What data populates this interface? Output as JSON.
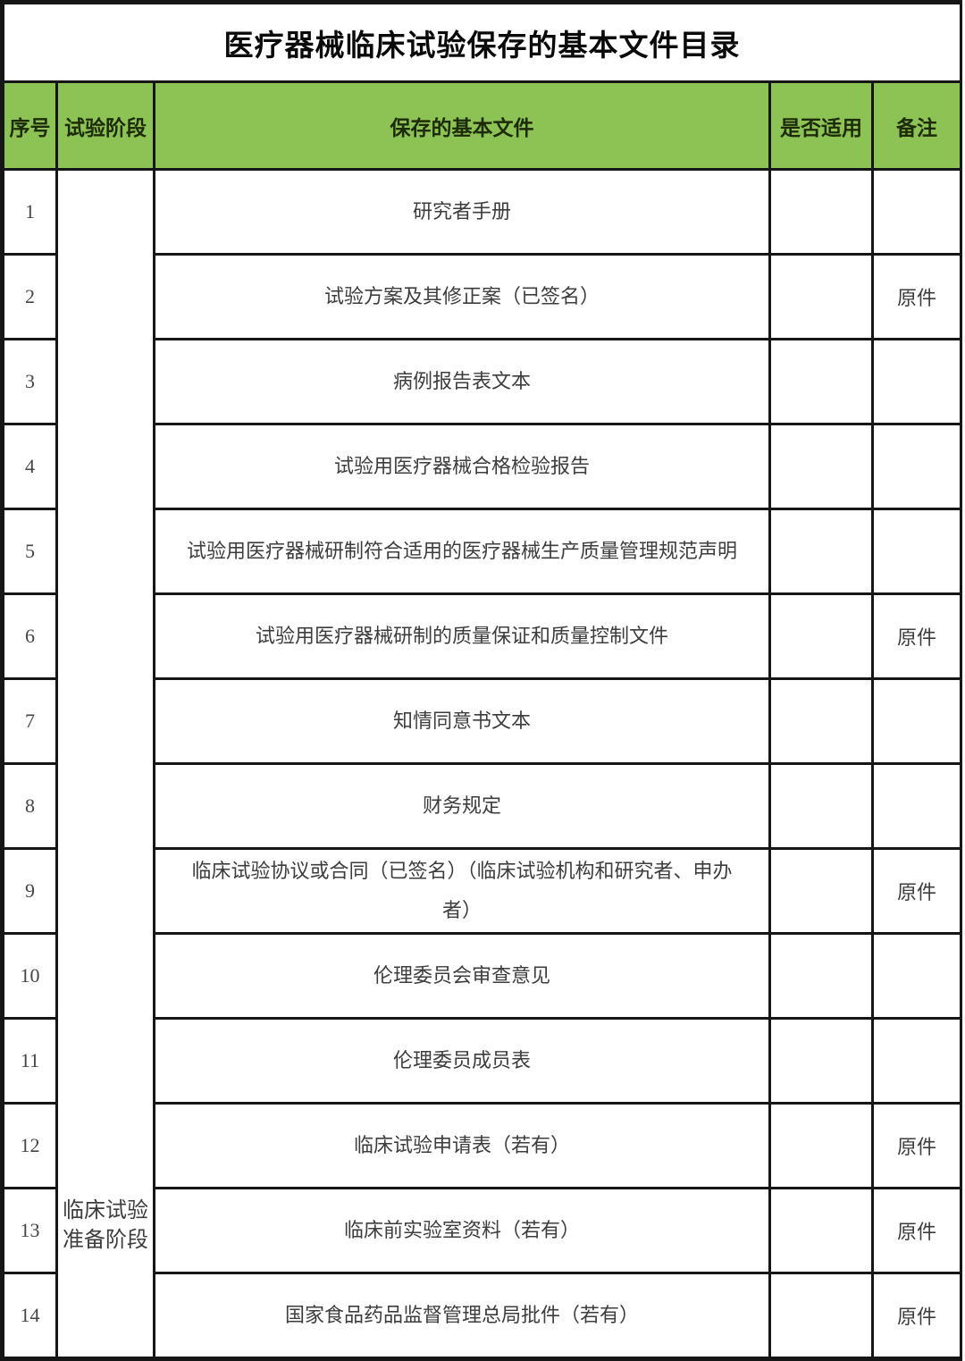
{
  "title": "医疗器械临床试验保存的基本文件目录",
  "colors": {
    "header_bg": "#8dc355",
    "border": "#161616",
    "body_text": "#3d3d3d"
  },
  "table": {
    "headers": {
      "index": "序号",
      "phase": "试验阶段",
      "document": "保存的基本文件",
      "applicable": "是否适用",
      "remark": "备注"
    },
    "phase_label": "临床试验准备阶段",
    "rows": [
      {
        "no": "1",
        "document": "研究者手册",
        "applicable": "",
        "remark": ""
      },
      {
        "no": "2",
        "document": "试验方案及其修正案（已签名）",
        "applicable": "",
        "remark": "原件"
      },
      {
        "no": "3",
        "document": "病例报告表文本",
        "applicable": "",
        "remark": ""
      },
      {
        "no": "4",
        "document": "试验用医疗器械合格检验报告",
        "applicable": "",
        "remark": ""
      },
      {
        "no": "5",
        "document": "试验用医疗器械研制符合适用的医疗器械生产质量管理规范声明",
        "applicable": "",
        "remark": ""
      },
      {
        "no": "6",
        "document": "试验用医疗器械研制的质量保证和质量控制文件",
        "applicable": "",
        "remark": "原件"
      },
      {
        "no": "7",
        "document": "知情同意书文本",
        "applicable": "",
        "remark": ""
      },
      {
        "no": "8",
        "document": "财务规定",
        "applicable": "",
        "remark": ""
      },
      {
        "no": "9",
        "document": "临床试验协议或合同（已签名）（临床试验机构和研究者、申办者）",
        "applicable": "",
        "remark": "原件"
      },
      {
        "no": "10",
        "document": "伦理委员会审查意见",
        "applicable": "",
        "remark": ""
      },
      {
        "no": "11",
        "document": "伦理委员成员表",
        "applicable": "",
        "remark": ""
      },
      {
        "no": "12",
        "document": "临床试验申请表（若有）",
        "applicable": "",
        "remark": "原件"
      },
      {
        "no": "13",
        "document": "临床前实验室资料（若有）",
        "applicable": "",
        "remark": "原件"
      },
      {
        "no": "14",
        "document": "国家食品药品监督管理总局批件（若有）",
        "applicable": "",
        "remark": "原件"
      }
    ]
  }
}
